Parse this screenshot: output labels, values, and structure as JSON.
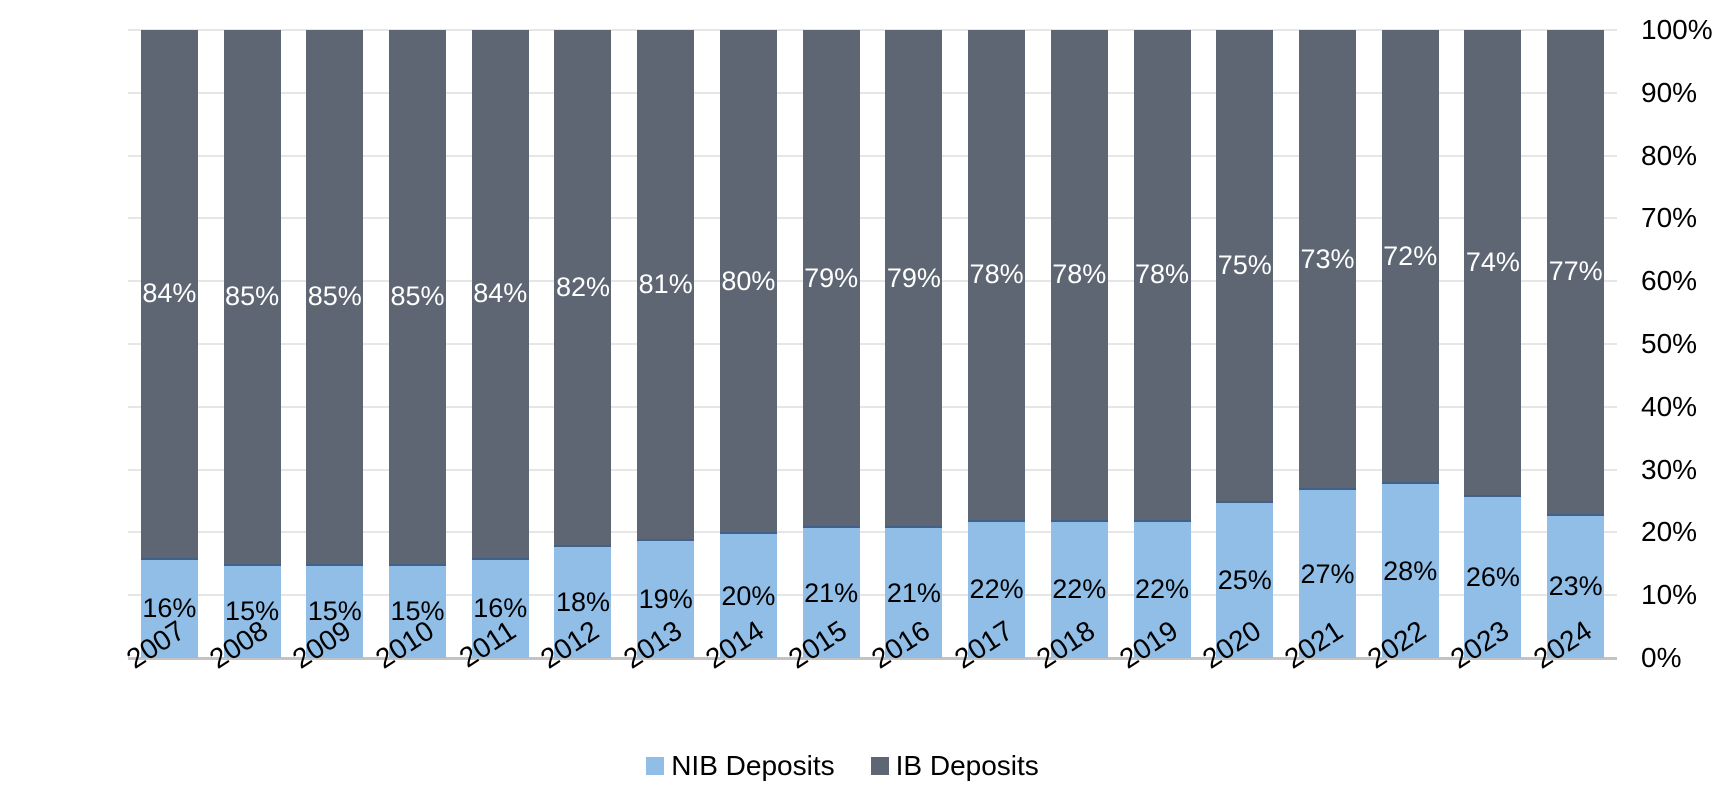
{
  "chart_data": {
    "type": "bar",
    "stacked": true,
    "percent_stacked": true,
    "title": "",
    "xlabel": "",
    "ylabel": "",
    "categories": [
      "2007",
      "2008",
      "2009",
      "2010",
      "2011",
      "2012",
      "2013",
      "2014",
      "2015",
      "2016",
      "2017",
      "2018",
      "2019",
      "2020",
      "2021",
      "2022",
      "2023",
      "2024"
    ],
    "series": [
      {
        "name": "NIB Deposits",
        "color": "#90bee7",
        "border_top_color": "#41608c",
        "label_color": "#000000",
        "values": [
          16,
          15,
          15,
          15,
          16,
          18,
          19,
          20,
          21,
          21,
          22,
          22,
          22,
          25,
          27,
          28,
          26,
          23
        ],
        "labels": [
          "16%",
          "15%",
          "15%",
          "15%",
          "16%",
          "18%",
          "19%",
          "20%",
          "21%",
          "21%",
          "22%",
          "22%",
          "22%",
          "25%",
          "27%",
          "28%",
          "26%",
          "23%"
        ]
      },
      {
        "name": "IB Deposits",
        "color": "#5d6672",
        "border_top_color": "",
        "label_color": "#ffffff",
        "values": [
          84,
          85,
          85,
          85,
          84,
          82,
          81,
          80,
          79,
          79,
          78,
          78,
          78,
          75,
          73,
          72,
          74,
          77
        ],
        "labels": [
          "84%",
          "85%",
          "85%",
          "85%",
          "84%",
          "82%",
          "81%",
          "80%",
          "79%",
          "79%",
          "78%",
          "78%",
          "78%",
          "75%",
          "73%",
          "72%",
          "74%",
          "77%"
        ]
      }
    ],
    "y_axis": {
      "side": "right",
      "min": 0,
      "max": 100,
      "step": 10,
      "tick_labels": [
        "0%",
        "10%",
        "20%",
        "30%",
        "40%",
        "50%",
        "60%",
        "70%",
        "80%",
        "90%",
        "100%"
      ]
    },
    "x_axis": {
      "tick_rotation_deg": 33
    },
    "grid": true,
    "gridline_color": "#e6e6e6",
    "baseline_color": "#c3c3c3",
    "legend": {
      "position": "bottom",
      "entries": [
        "NIB Deposits",
        "IB Deposits"
      ]
    }
  }
}
